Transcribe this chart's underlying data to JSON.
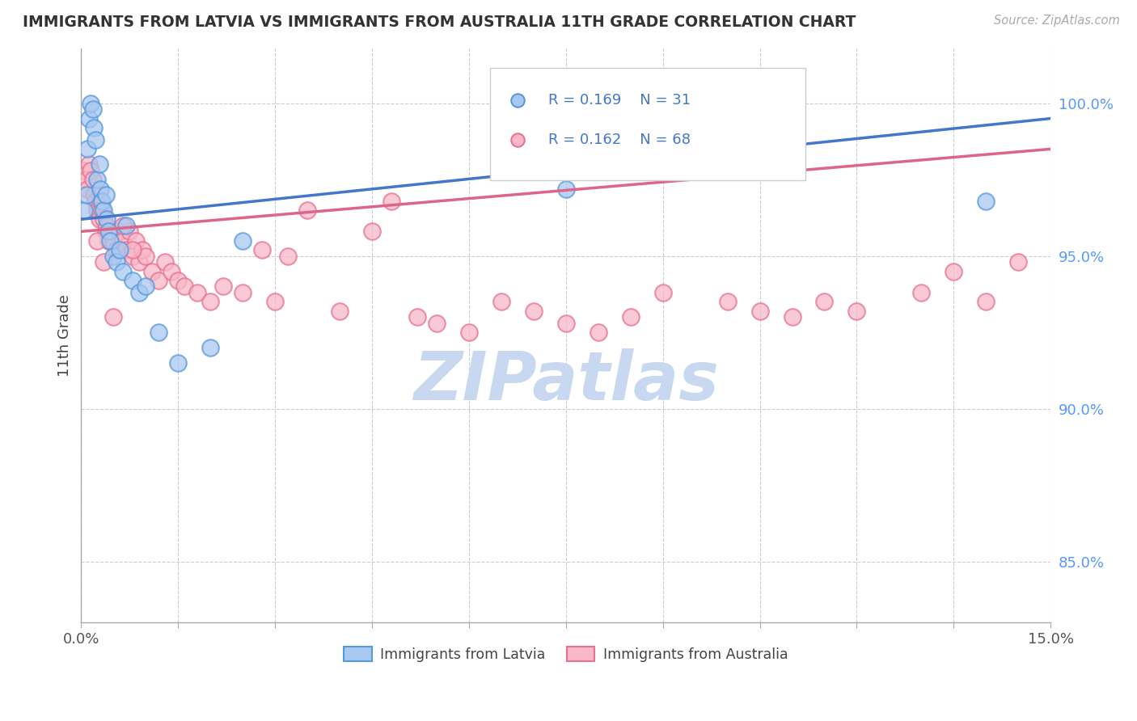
{
  "title": "IMMIGRANTS FROM LATVIA VS IMMIGRANTS FROM AUSTRALIA 11TH GRADE CORRELATION CHART",
  "source_text": "Source: ZipAtlas.com",
  "ylabel": "11th Grade",
  "x_min": 0.0,
  "x_max": 15.0,
  "y_min": 83.0,
  "y_max": 101.8,
  "y_ticks": [
    85.0,
    90.0,
    95.0,
    100.0
  ],
  "y_tick_labels": [
    "85.0%",
    "90.0%",
    "95.0%",
    "100.0%"
  ],
  "x_tick_positions": [
    0.0,
    1.5,
    3.0,
    4.5,
    6.0,
    7.5,
    9.0,
    10.5,
    12.0,
    13.5,
    15.0
  ],
  "x_tick_labels_show": [
    "0.0%",
    "",
    "",
    "",
    "",
    "",
    "",
    "",
    "",
    "",
    "15.0%"
  ],
  "legend_r_latvia": "0.169",
  "legend_n_latvia": "31",
  "legend_r_australia": "0.162",
  "legend_n_australia": "68",
  "color_latvia_fill": "#A8C8F0",
  "color_latvia_edge": "#5599DD",
  "color_australia_fill": "#F8B8C8",
  "color_australia_edge": "#E87090",
  "color_line_latvia": "#4477CC",
  "color_line_australia": "#DD6688",
  "background_color": "#FFFFFF",
  "watermark_text": "ZIPatlas",
  "watermark_color": "#C8D8F0",
  "legend_labels": [
    "Immigrants from Latvia",
    "Immigrants from Australia"
  ],
  "latvia_x": [
    0.05,
    0.08,
    0.1,
    0.12,
    0.15,
    0.18,
    0.2,
    0.22,
    0.25,
    0.28,
    0.3,
    0.32,
    0.35,
    0.38,
    0.4,
    0.42,
    0.45,
    0.5,
    0.55,
    0.6,
    0.65,
    0.7,
    0.8,
    0.9,
    1.0,
    1.2,
    1.5,
    2.0,
    2.5,
    7.5,
    14.0
  ],
  "latvia_y": [
    96.5,
    97.0,
    98.5,
    99.5,
    100.0,
    99.8,
    99.2,
    98.8,
    97.5,
    98.0,
    97.2,
    96.8,
    96.5,
    97.0,
    96.2,
    95.8,
    95.5,
    95.0,
    94.8,
    95.2,
    94.5,
    96.0,
    94.2,
    93.8,
    94.0,
    92.5,
    91.5,
    92.0,
    95.5,
    97.2,
    96.8
  ],
  "australia_x": [
    0.05,
    0.08,
    0.1,
    0.12,
    0.15,
    0.18,
    0.2,
    0.22,
    0.25,
    0.28,
    0.3,
    0.32,
    0.35,
    0.38,
    0.4,
    0.42,
    0.45,
    0.5,
    0.55,
    0.6,
    0.65,
    0.7,
    0.75,
    0.8,
    0.85,
    0.9,
    0.95,
    1.0,
    1.1,
    1.2,
    1.3,
    1.4,
    1.5,
    1.6,
    1.8,
    2.0,
    2.2,
    2.5,
    2.8,
    3.0,
    3.2,
    3.5,
    4.0,
    4.5,
    4.8,
    5.2,
    5.5,
    6.0,
    6.5,
    7.0,
    7.5,
    8.0,
    8.5,
    9.0,
    10.0,
    10.5,
    11.0,
    11.5,
    12.0,
    13.0,
    13.5,
    14.0,
    14.5,
    0.25,
    0.35,
    0.5,
    0.65,
    0.8
  ],
  "australia_y": [
    97.8,
    97.5,
    97.2,
    98.0,
    97.8,
    97.5,
    97.0,
    96.8,
    96.5,
    96.2,
    96.8,
    96.5,
    96.2,
    95.8,
    96.0,
    95.5,
    95.8,
    95.5,
    95.2,
    95.8,
    95.5,
    95.2,
    95.8,
    95.0,
    95.5,
    94.8,
    95.2,
    95.0,
    94.5,
    94.2,
    94.8,
    94.5,
    94.2,
    94.0,
    93.8,
    93.5,
    94.0,
    93.8,
    95.2,
    93.5,
    95.0,
    96.5,
    93.2,
    95.8,
    96.8,
    93.0,
    92.8,
    92.5,
    93.5,
    93.2,
    92.8,
    92.5,
    93.0,
    93.8,
    93.5,
    93.2,
    93.0,
    93.5,
    93.2,
    93.8,
    94.5,
    93.5,
    94.8,
    95.5,
    94.8,
    93.0,
    96.0,
    95.2
  ]
}
